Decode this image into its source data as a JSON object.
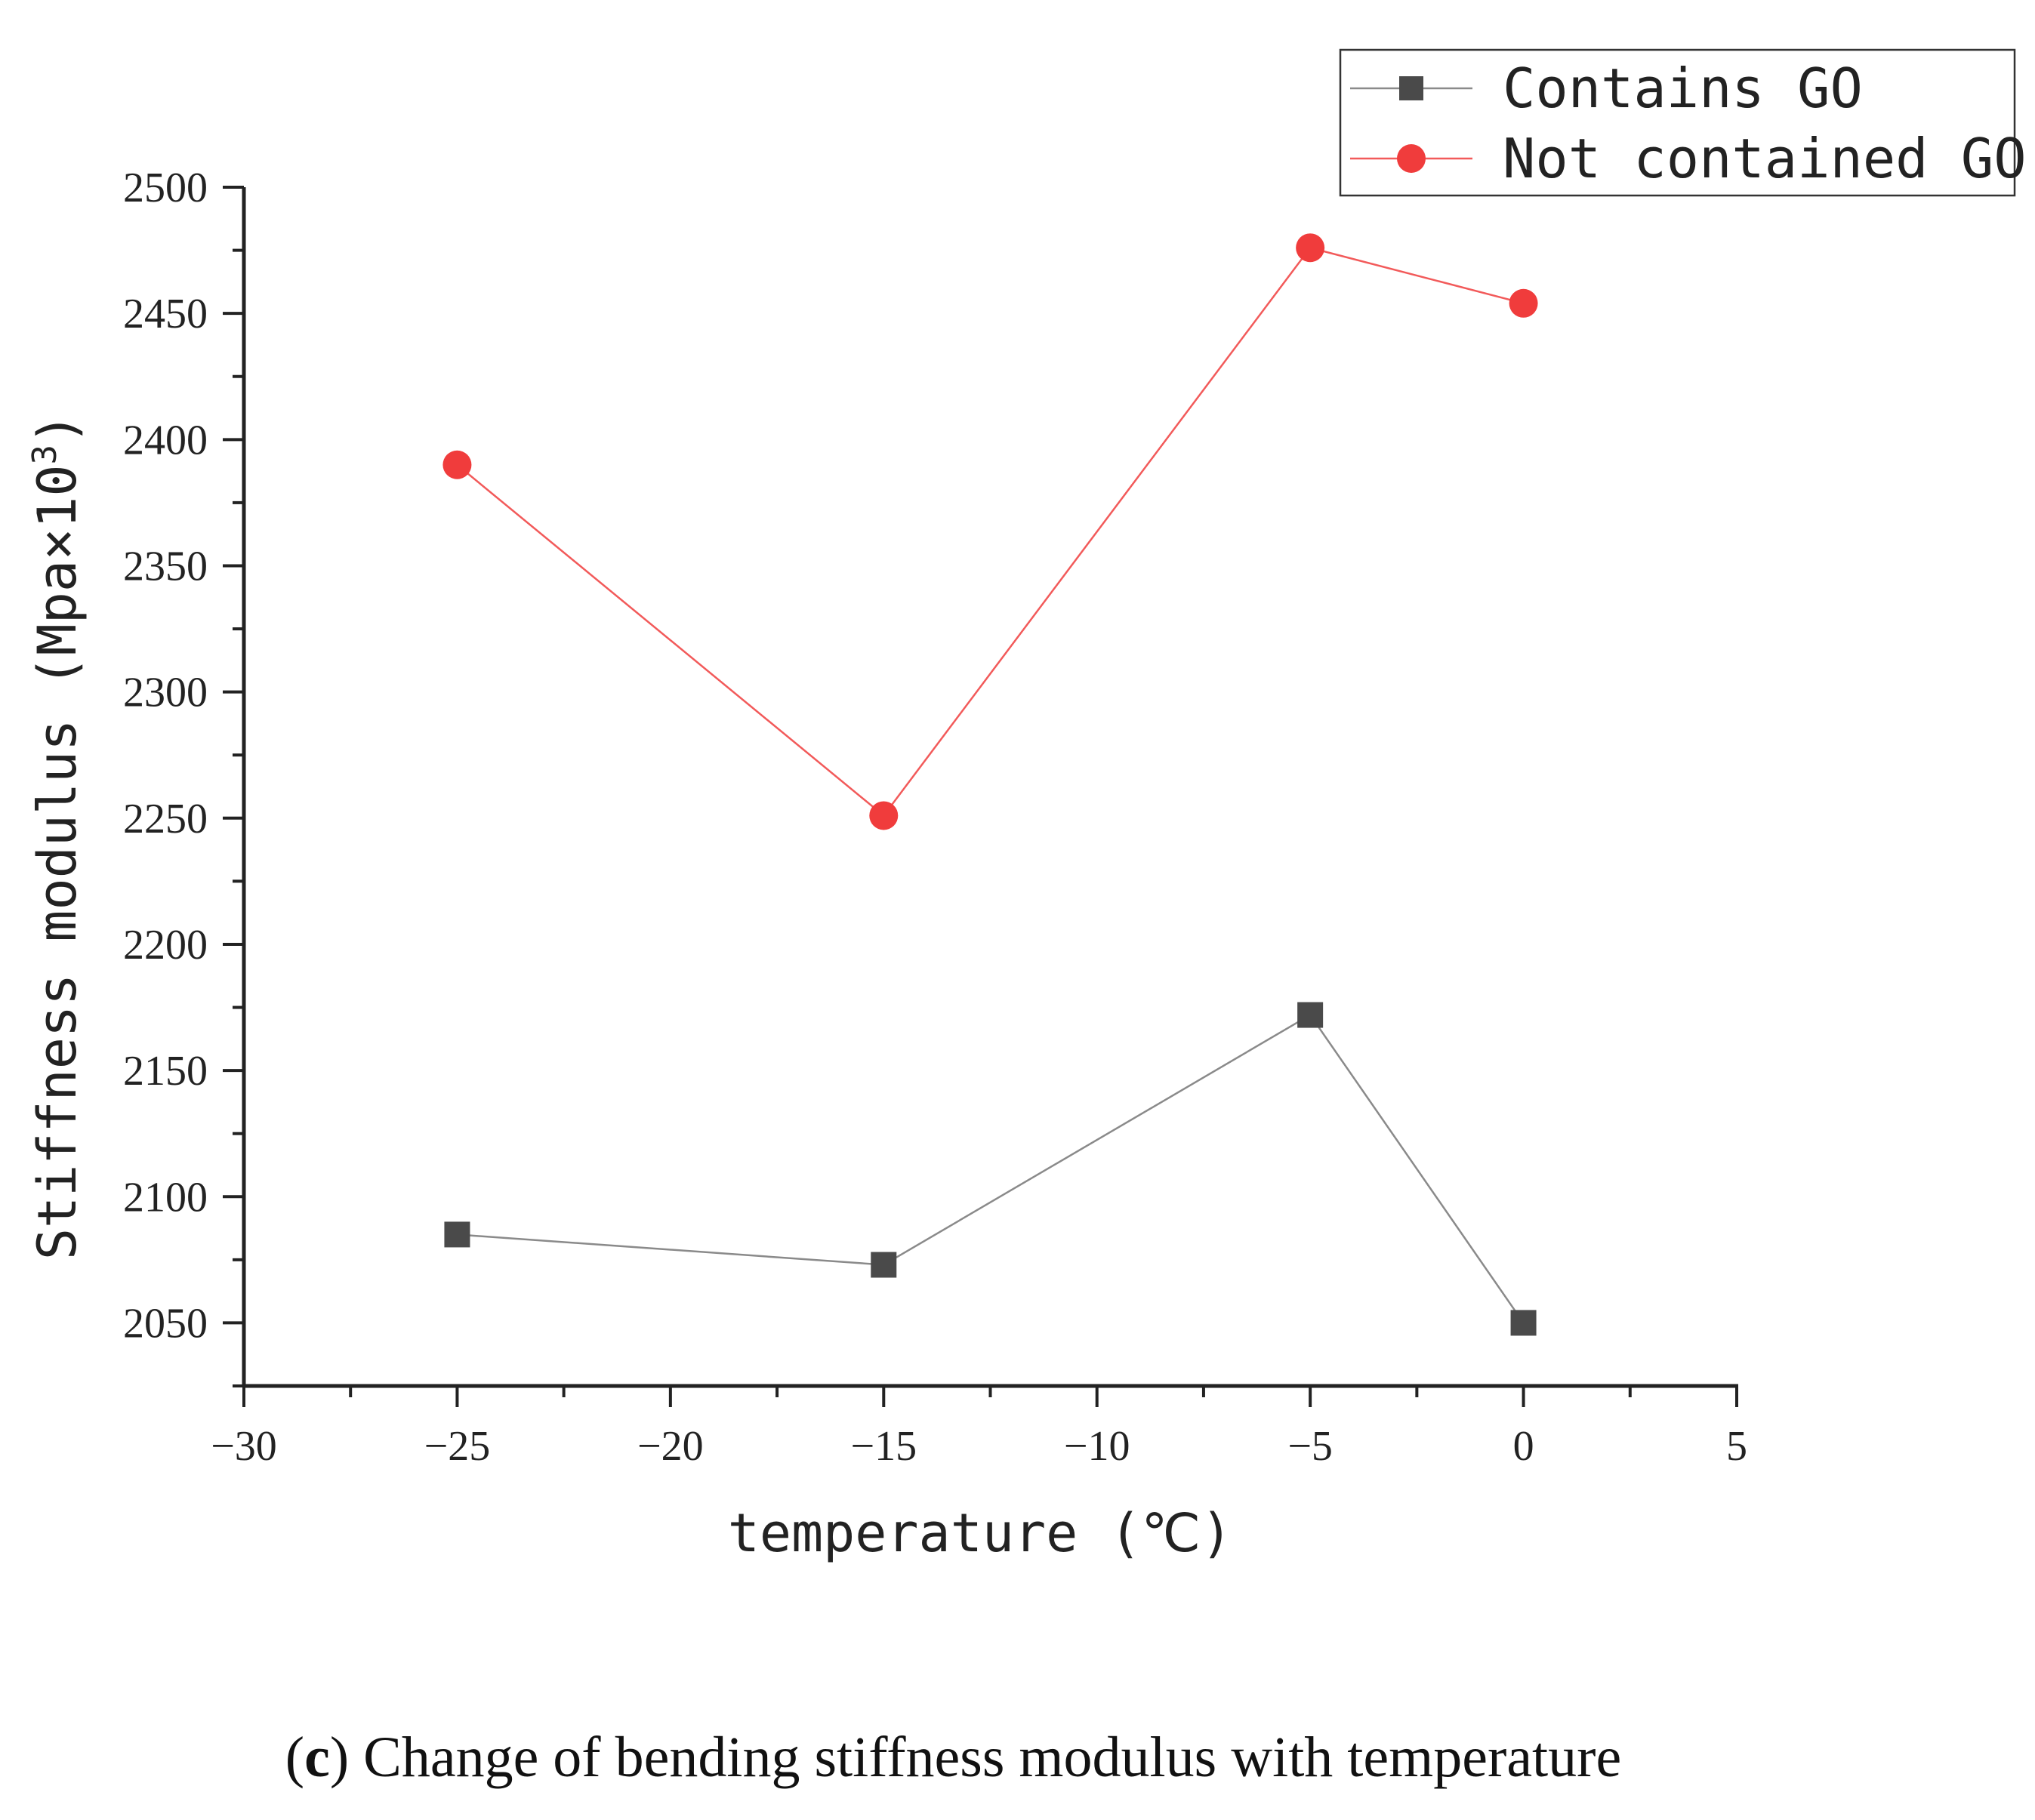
{
  "chart_data": {
    "type": "line",
    "title": "",
    "xlabel": "temperature (℃)",
    "ylabel": "Stiffness modulus (Mpa×10",
    "ylabel_sup": "3",
    "ylabel_close": ")",
    "xlim": [
      -30,
      5
    ],
    "ylim": [
      2025,
      2500
    ],
    "xticks": [
      -30,
      -25,
      -20,
      -15,
      -10,
      -5,
      0,
      5
    ],
    "xtick_labels": [
      "−30",
      "−25",
      "−20",
      "−15",
      "−10",
      "−5",
      "0",
      "5"
    ],
    "yticks": [
      2050,
      2100,
      2150,
      2200,
      2250,
      2300,
      2350,
      2400,
      2450,
      2500
    ],
    "ytick_labels": [
      "2050",
      "2100",
      "2150",
      "2200",
      "2250",
      "2300",
      "2350",
      "2400",
      "2450",
      "2500"
    ],
    "grid": false,
    "legend_position": "top-right",
    "series": [
      {
        "name": "Contains GO",
        "marker": "square",
        "color": "#4a4a4a",
        "line_color": "#8a8a8a",
        "x": [
          -25,
          -15,
          -5,
          0
        ],
        "y": [
          2085,
          2073,
          2172,
          2050
        ]
      },
      {
        "name": "Not contained GO",
        "marker": "circle",
        "color": "#f03c3c",
        "line_color": "#f25a5a",
        "x": [
          -25,
          -15,
          -5,
          0
        ],
        "y": [
          2390,
          2251,
          2476,
          2454
        ]
      }
    ]
  },
  "caption": {
    "label": "c",
    "open": "(",
    "close": ")",
    "text": " Change of bending stiffness modulus with temperature"
  }
}
